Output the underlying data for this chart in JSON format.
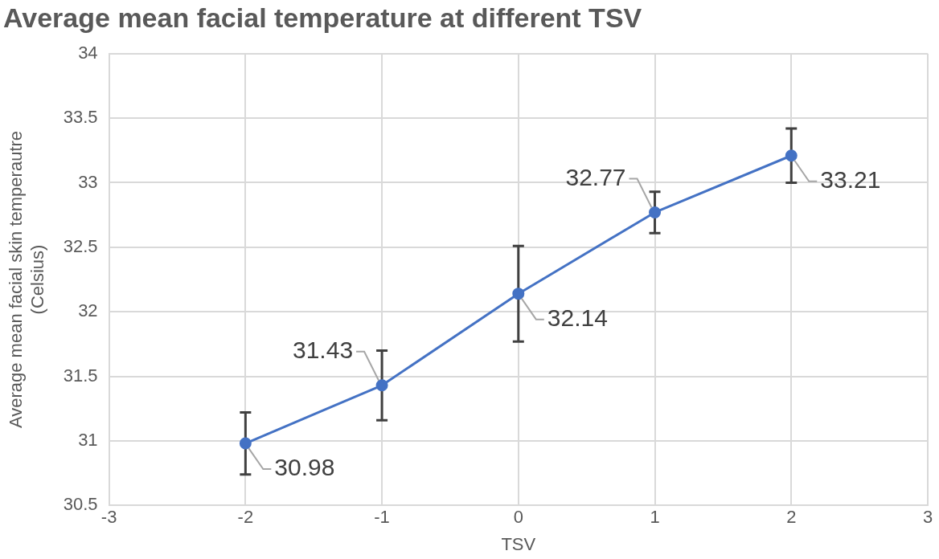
{
  "chart_data": {
    "type": "line",
    "title": "Average mean facial temperature at different TSV",
    "xlabel": "TSV",
    "ylabel": "Average mean facial skin temperautre\n(Celsius)",
    "x": [
      -2,
      -1,
      0,
      1,
      2
    ],
    "series": [
      {
        "color": "#4472c4",
        "values": [
          30.98,
          31.43,
          32.14,
          32.77,
          33.21
        ],
        "errors": [
          0.24,
          0.27,
          0.37,
          0.16,
          0.21
        ]
      }
    ],
    "xlim": [
      -3,
      3
    ],
    "xticks": [
      -3,
      -2,
      -1,
      0,
      1,
      2,
      3
    ],
    "ylim": [
      30.5,
      34
    ],
    "yticks": [
      30.5,
      31,
      31.5,
      32,
      32.5,
      33,
      33.5,
      34
    ],
    "grid": true,
    "marker": "circle",
    "line_style": "solid",
    "data_labels": true,
    "legend": false
  }
}
